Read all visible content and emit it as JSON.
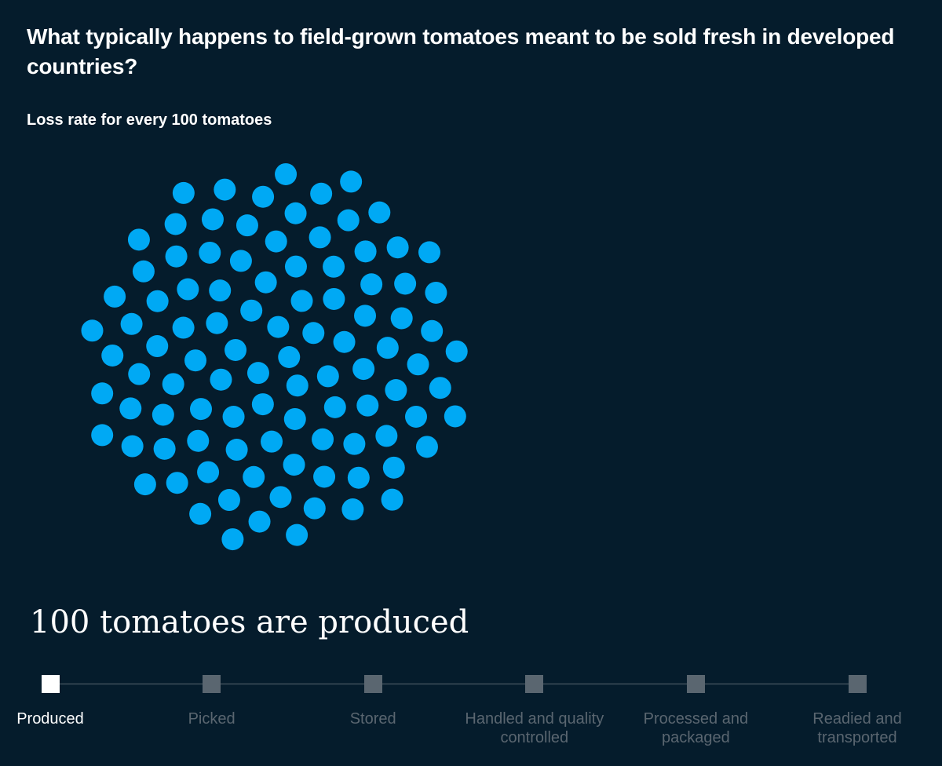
{
  "chart_data": {
    "type": "dot-grid",
    "title": "What typically happens to field-grown tomatoes meant to be sold fresh in developed countries?",
    "subtitle": "Loss rate for every 100 tomatoes",
    "total": 100,
    "remaining": 100,
    "dot_color": "#00a9f4",
    "caption": "100 tomatoes are produced"
  },
  "stages": [
    {
      "label": "Produced",
      "active": true
    },
    {
      "label": "Picked",
      "active": false
    },
    {
      "label": "Stored",
      "active": false
    },
    {
      "label": "Handled and quality controlled",
      "active": false
    },
    {
      "label": "Processed and packaged",
      "active": false
    },
    {
      "label": "Readied and transported",
      "active": false
    }
  ],
  "colors": {
    "background": "#051c2c",
    "inactive": "#5a6670",
    "active": "#ffffff"
  }
}
